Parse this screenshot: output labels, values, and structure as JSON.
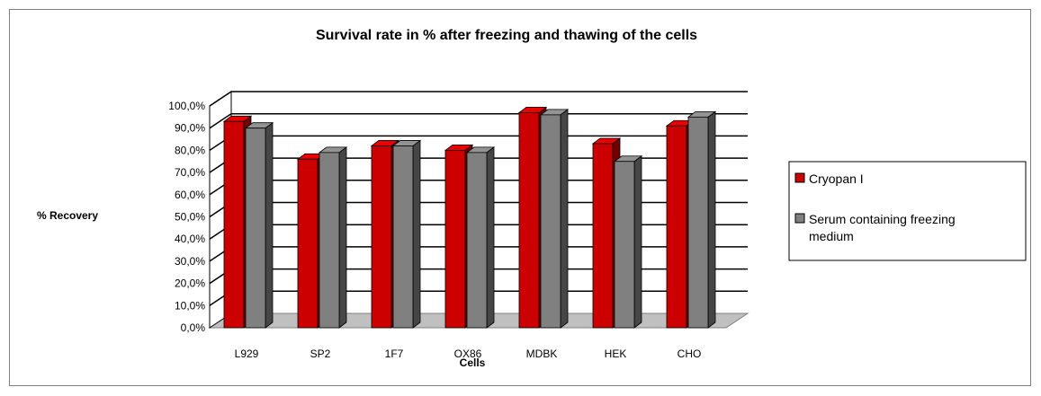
{
  "chart_data": {
    "type": "bar",
    "title": "Survival rate in % after freezing and thawing of the cells",
    "xlabel": "Cells",
    "ylabel": "% Recovery",
    "categories": [
      "L929",
      "SP2",
      "1F7",
      "OX86",
      "MDBK",
      "HEK",
      "CHO"
    ],
    "y_ticks": [
      "0,0%",
      "10,0%",
      "20,0%",
      "30,0%",
      "40,0%",
      "50,0%",
      "60,0%",
      "70,0%",
      "80,0%",
      "90,0%",
      "100,0%"
    ],
    "ylim": [
      0,
      100
    ],
    "grid": true,
    "legend_position": "right",
    "series": [
      {
        "name": "Cryopan I",
        "color": "#cc0000",
        "values": [
          93,
          76,
          82,
          80,
          97,
          83,
          91
        ]
      },
      {
        "name": "Serum containing freezing medium",
        "color": "#808080",
        "values": [
          90,
          79,
          82,
          79,
          96,
          75,
          95
        ]
      }
    ]
  }
}
